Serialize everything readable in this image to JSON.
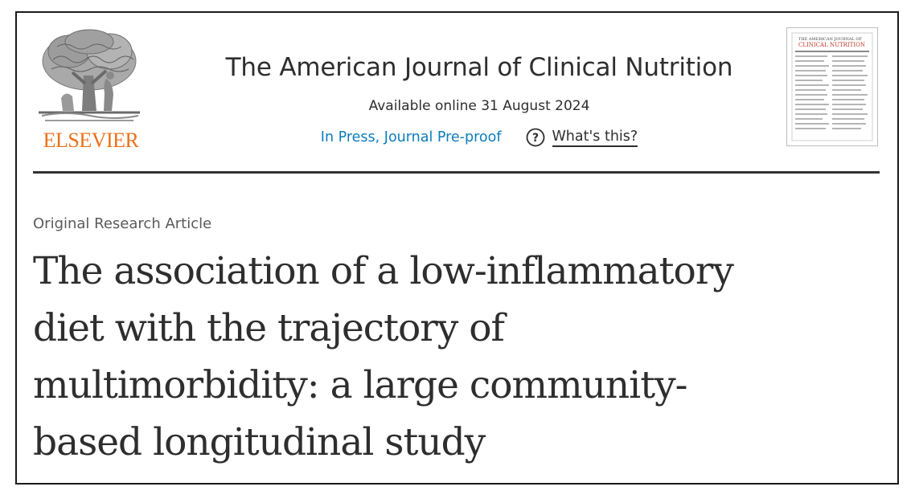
{
  "publisher": {
    "name": "ELSEVIER",
    "logo_icon": "elsevier-tree-icon",
    "brand_color": "#E9711C"
  },
  "journal": {
    "title": "The American Journal of Clinical Nutrition",
    "availability": "Available online 31 August 2024",
    "status_link": "In Press, Journal Pre-proof",
    "help_label": "What's this?",
    "help_icon": "question-circle-icon",
    "link_color": "#0C7DBB",
    "cover_icon": "journal-cover-thumbnail"
  },
  "article": {
    "type": "Original Research Article",
    "title_lines": [
      "The association of a low-inflammatory",
      "diet with the trajectory of",
      "multimorbidity: a large community-",
      "based longitudinal study"
    ]
  }
}
